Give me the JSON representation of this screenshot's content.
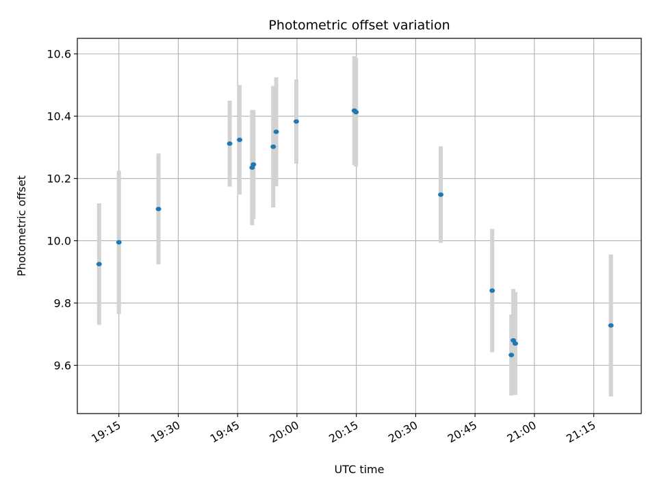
{
  "chart_data": {
    "type": "scatter",
    "title": "Photometric offset variation",
    "xlabel": "UTC time",
    "ylabel": "Photometric offset",
    "x_ticks": [
      "19:15",
      "19:30",
      "19:45",
      "20:00",
      "20:15",
      "20:30",
      "20:45",
      "21:00",
      "21:15"
    ],
    "y_ticks": [
      "9.6",
      "9.8",
      "10.0",
      "10.2",
      "10.4",
      "10.6"
    ],
    "xlim": [
      "19:04:30",
      "21:27:00"
    ],
    "ylim": [
      9.445,
      10.65
    ],
    "grid": true,
    "marker_color": "#1f77b4",
    "errorbar_color": "#d3d3d3",
    "points": [
      {
        "x": "19:10:00",
        "y": 9.925,
        "err": 0.195
      },
      {
        "x": "19:15:00",
        "y": 9.995,
        "err": 0.23
      },
      {
        "x": "19:25:00",
        "y": 10.102,
        "err": 0.178
      },
      {
        "x": "19:43:00",
        "y": 10.312,
        "err": 0.138
      },
      {
        "x": "19:45:30",
        "y": 10.324,
        "err": 0.176
      },
      {
        "x": "19:48:40",
        "y": 10.235,
        "err": 0.185
      },
      {
        "x": "19:49:00",
        "y": 10.245,
        "err": 0.175
      },
      {
        "x": "19:54:00",
        "y": 10.302,
        "err": 0.195
      },
      {
        "x": "19:54:45",
        "y": 10.35,
        "err": 0.175
      },
      {
        "x": "19:59:50",
        "y": 10.383,
        "err": 0.135
      },
      {
        "x": "20:14:30",
        "y": 10.418,
        "err": 0.175
      },
      {
        "x": "20:14:55",
        "y": 10.413,
        "err": 0.175
      },
      {
        "x": "20:36:20",
        "y": 10.148,
        "err": 0.155
      },
      {
        "x": "20:49:20",
        "y": 9.84,
        "err": 0.198
      },
      {
        "x": "20:54:10",
        "y": 9.633,
        "err": 0.13
      },
      {
        "x": "20:54:40",
        "y": 9.68,
        "err": 0.165
      },
      {
        "x": "20:55:10",
        "y": 9.67,
        "err": 0.165
      },
      {
        "x": "21:19:20",
        "y": 9.728,
        "err": 0.228
      }
    ]
  }
}
